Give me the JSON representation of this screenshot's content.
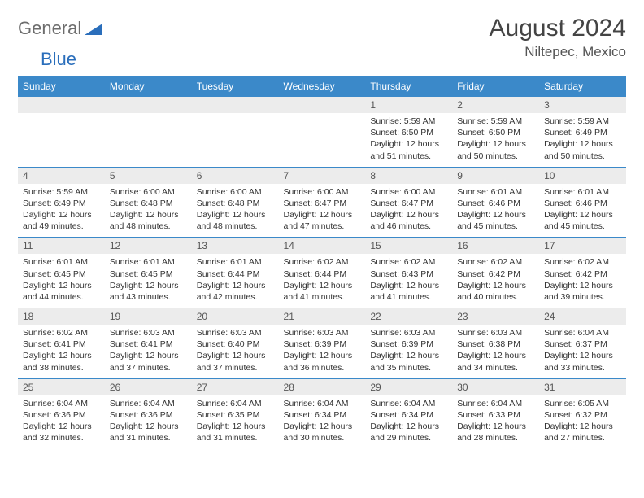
{
  "brand": {
    "part1": "General",
    "part2": "Blue"
  },
  "title": "August 2024",
  "subtitle": "Niltepec, Mexico",
  "colors": {
    "header_bg": "#3b89c9",
    "header_text": "#ffffff",
    "daynum_bg": "#ececec",
    "daynum_text": "#555555",
    "border": "#3b89c9",
    "body_text": "#333333"
  },
  "days_of_week": [
    "Sunday",
    "Monday",
    "Tuesday",
    "Wednesday",
    "Thursday",
    "Friday",
    "Saturday"
  ],
  "weeks": [
    [
      {
        "n": "",
        "sr": "",
        "ss": "",
        "dl": ""
      },
      {
        "n": "",
        "sr": "",
        "ss": "",
        "dl": ""
      },
      {
        "n": "",
        "sr": "",
        "ss": "",
        "dl": ""
      },
      {
        "n": "",
        "sr": "",
        "ss": "",
        "dl": ""
      },
      {
        "n": "1",
        "sr": "Sunrise: 5:59 AM",
        "ss": "Sunset: 6:50 PM",
        "dl": "Daylight: 12 hours and 51 minutes."
      },
      {
        "n": "2",
        "sr": "Sunrise: 5:59 AM",
        "ss": "Sunset: 6:50 PM",
        "dl": "Daylight: 12 hours and 50 minutes."
      },
      {
        "n": "3",
        "sr": "Sunrise: 5:59 AM",
        "ss": "Sunset: 6:49 PM",
        "dl": "Daylight: 12 hours and 50 minutes."
      }
    ],
    [
      {
        "n": "4",
        "sr": "Sunrise: 5:59 AM",
        "ss": "Sunset: 6:49 PM",
        "dl": "Daylight: 12 hours and 49 minutes."
      },
      {
        "n": "5",
        "sr": "Sunrise: 6:00 AM",
        "ss": "Sunset: 6:48 PM",
        "dl": "Daylight: 12 hours and 48 minutes."
      },
      {
        "n": "6",
        "sr": "Sunrise: 6:00 AM",
        "ss": "Sunset: 6:48 PM",
        "dl": "Daylight: 12 hours and 48 minutes."
      },
      {
        "n": "7",
        "sr": "Sunrise: 6:00 AM",
        "ss": "Sunset: 6:47 PM",
        "dl": "Daylight: 12 hours and 47 minutes."
      },
      {
        "n": "8",
        "sr": "Sunrise: 6:00 AM",
        "ss": "Sunset: 6:47 PM",
        "dl": "Daylight: 12 hours and 46 minutes."
      },
      {
        "n": "9",
        "sr": "Sunrise: 6:01 AM",
        "ss": "Sunset: 6:46 PM",
        "dl": "Daylight: 12 hours and 45 minutes."
      },
      {
        "n": "10",
        "sr": "Sunrise: 6:01 AM",
        "ss": "Sunset: 6:46 PM",
        "dl": "Daylight: 12 hours and 45 minutes."
      }
    ],
    [
      {
        "n": "11",
        "sr": "Sunrise: 6:01 AM",
        "ss": "Sunset: 6:45 PM",
        "dl": "Daylight: 12 hours and 44 minutes."
      },
      {
        "n": "12",
        "sr": "Sunrise: 6:01 AM",
        "ss": "Sunset: 6:45 PM",
        "dl": "Daylight: 12 hours and 43 minutes."
      },
      {
        "n": "13",
        "sr": "Sunrise: 6:01 AM",
        "ss": "Sunset: 6:44 PM",
        "dl": "Daylight: 12 hours and 42 minutes."
      },
      {
        "n": "14",
        "sr": "Sunrise: 6:02 AM",
        "ss": "Sunset: 6:44 PM",
        "dl": "Daylight: 12 hours and 41 minutes."
      },
      {
        "n": "15",
        "sr": "Sunrise: 6:02 AM",
        "ss": "Sunset: 6:43 PM",
        "dl": "Daylight: 12 hours and 41 minutes."
      },
      {
        "n": "16",
        "sr": "Sunrise: 6:02 AM",
        "ss": "Sunset: 6:42 PM",
        "dl": "Daylight: 12 hours and 40 minutes."
      },
      {
        "n": "17",
        "sr": "Sunrise: 6:02 AM",
        "ss": "Sunset: 6:42 PM",
        "dl": "Daylight: 12 hours and 39 minutes."
      }
    ],
    [
      {
        "n": "18",
        "sr": "Sunrise: 6:02 AM",
        "ss": "Sunset: 6:41 PM",
        "dl": "Daylight: 12 hours and 38 minutes."
      },
      {
        "n": "19",
        "sr": "Sunrise: 6:03 AM",
        "ss": "Sunset: 6:41 PM",
        "dl": "Daylight: 12 hours and 37 minutes."
      },
      {
        "n": "20",
        "sr": "Sunrise: 6:03 AM",
        "ss": "Sunset: 6:40 PM",
        "dl": "Daylight: 12 hours and 37 minutes."
      },
      {
        "n": "21",
        "sr": "Sunrise: 6:03 AM",
        "ss": "Sunset: 6:39 PM",
        "dl": "Daylight: 12 hours and 36 minutes."
      },
      {
        "n": "22",
        "sr": "Sunrise: 6:03 AM",
        "ss": "Sunset: 6:39 PM",
        "dl": "Daylight: 12 hours and 35 minutes."
      },
      {
        "n": "23",
        "sr": "Sunrise: 6:03 AM",
        "ss": "Sunset: 6:38 PM",
        "dl": "Daylight: 12 hours and 34 minutes."
      },
      {
        "n": "24",
        "sr": "Sunrise: 6:04 AM",
        "ss": "Sunset: 6:37 PM",
        "dl": "Daylight: 12 hours and 33 minutes."
      }
    ],
    [
      {
        "n": "25",
        "sr": "Sunrise: 6:04 AM",
        "ss": "Sunset: 6:36 PM",
        "dl": "Daylight: 12 hours and 32 minutes."
      },
      {
        "n": "26",
        "sr": "Sunrise: 6:04 AM",
        "ss": "Sunset: 6:36 PM",
        "dl": "Daylight: 12 hours and 31 minutes."
      },
      {
        "n": "27",
        "sr": "Sunrise: 6:04 AM",
        "ss": "Sunset: 6:35 PM",
        "dl": "Daylight: 12 hours and 31 minutes."
      },
      {
        "n": "28",
        "sr": "Sunrise: 6:04 AM",
        "ss": "Sunset: 6:34 PM",
        "dl": "Daylight: 12 hours and 30 minutes."
      },
      {
        "n": "29",
        "sr": "Sunrise: 6:04 AM",
        "ss": "Sunset: 6:34 PM",
        "dl": "Daylight: 12 hours and 29 minutes."
      },
      {
        "n": "30",
        "sr": "Sunrise: 6:04 AM",
        "ss": "Sunset: 6:33 PM",
        "dl": "Daylight: 12 hours and 28 minutes."
      },
      {
        "n": "31",
        "sr": "Sunrise: 6:05 AM",
        "ss": "Sunset: 6:32 PM",
        "dl": "Daylight: 12 hours and 27 minutes."
      }
    ]
  ]
}
